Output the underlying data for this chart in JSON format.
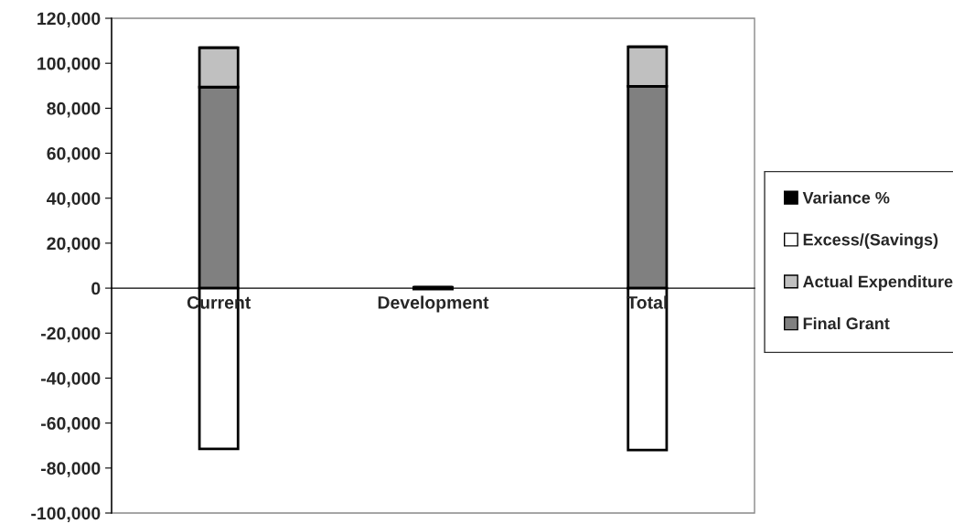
{
  "chart_data": {
    "type": "bar",
    "stacked": true,
    "categories": [
      "Current",
      "Development",
      "Total"
    ],
    "series": [
      {
        "name": "Final Grant",
        "color": "#808080",
        "values": [
          89400,
          400,
          89800
        ]
      },
      {
        "name": "Actual Expenditure",
        "color": "#c0c0c0",
        "values": [
          17500,
          0,
          17500
        ]
      },
      {
        "name": "Excess/(Savings)",
        "color": "#ffffff",
        "values": [
          -71500,
          -400,
          -72000
        ]
      },
      {
        "name": "Variance %",
        "color": "#000000",
        "values": [
          0,
          0,
          0
        ]
      }
    ],
    "ylim": [
      -100000,
      120000
    ],
    "yticks": [
      {
        "value": -100000,
        "label": "-100,000"
      },
      {
        "value": -80000,
        "label": "-80,000"
      },
      {
        "value": -60000,
        "label": "-60,000"
      },
      {
        "value": -40000,
        "label": "-40,000"
      },
      {
        "value": -20000,
        "label": "-20,000"
      },
      0,
      {
        "value": 20000,
        "label": "20,000"
      },
      {
        "value": 40000,
        "label": "40,000"
      },
      {
        "value": 60000,
        "label": "60,000"
      },
      {
        "value": 80000,
        "label": "80,000"
      },
      {
        "value": 100000,
        "label": "100,000"
      },
      {
        "value": 120000,
        "label": "120,000"
      }
    ],
    "grid": false,
    "legend": "right"
  }
}
